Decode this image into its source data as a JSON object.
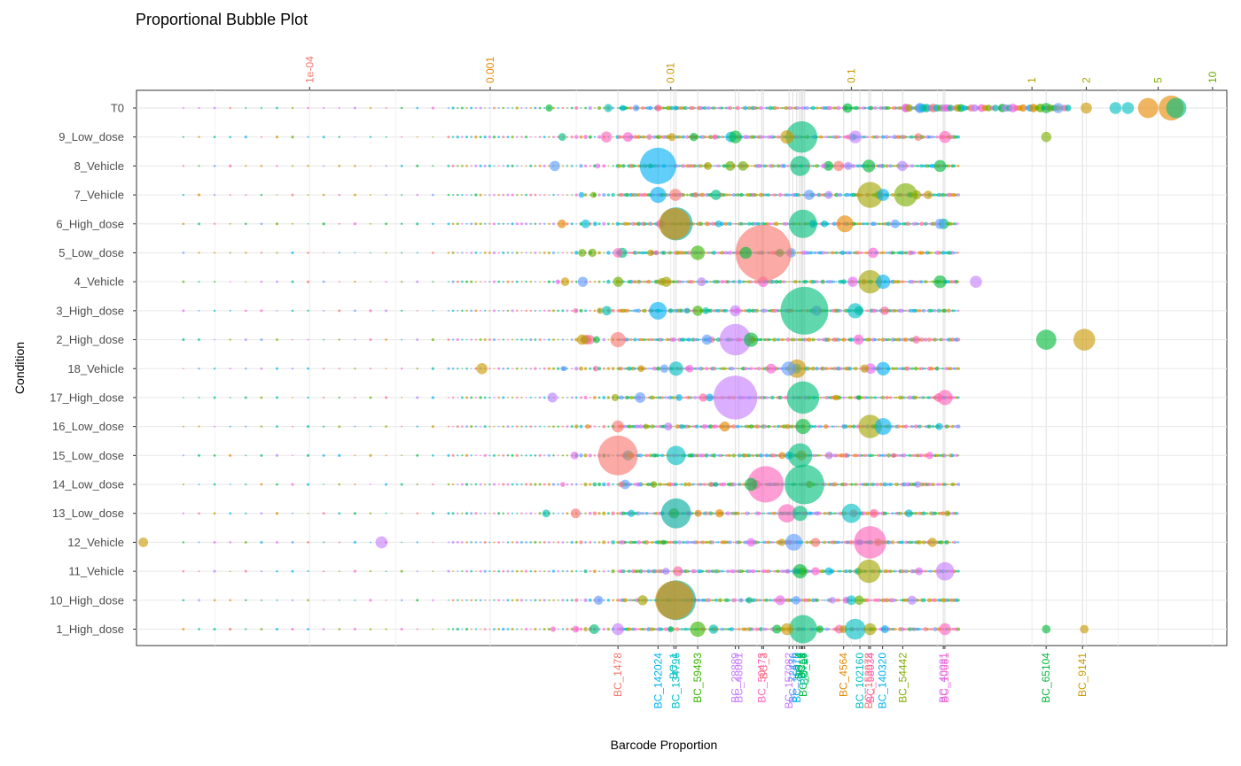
{
  "chart_data": {
    "type": "scatter",
    "subtype": "bubble",
    "title": "Proportional Bubble Plot",
    "xlabel": "Barcode Proportion",
    "ylabel": "Condition",
    "x_scale": "log10",
    "xlim": [
      1.1e-05,
      12
    ],
    "grid": true,
    "legend": "none",
    "conditions": [
      "T0",
      "9_Low_dose",
      "8_Vehicle",
      "7_Vehicle",
      "6_High_dose",
      "5_Low_dose",
      "4_Vehicle",
      "3_High_dose",
      "2_High_dose",
      "18_Vehicle",
      "17_High_dose",
      "16_Low_dose",
      "15_Low_dose",
      "14_Low_dose",
      "13_Low_dose",
      "12_Vehicle",
      "11_Vehicle",
      "10_High_dose",
      "1_High_dose"
    ],
    "top_axis_ticks": [
      {
        "value": 0.0001,
        "label": "1e-04",
        "color": "#F8766D"
      },
      {
        "value": 0.001,
        "label": "0.001",
        "color": "#E58700"
      },
      {
        "value": 0.01,
        "label": "0.01",
        "color": "#C99800"
      },
      {
        "value": 0.1,
        "label": "0.1",
        "color": "#C99800"
      },
      {
        "value": 1,
        "label": "1",
        "color": "#B8A000"
      },
      {
        "value": 2,
        "label": "2",
        "color": "#A3A500"
      },
      {
        "value": 5,
        "label": "5",
        "color": "#7CAE00"
      },
      {
        "value": 10,
        "label": "10",
        "color": "#6BB100"
      }
    ],
    "bottom_axis_ticks": [
      {
        "value": 0.0051,
        "label": "BC_1478",
        "color": "#F8766D"
      },
      {
        "value": 0.0085,
        "label": "BC_142024",
        "color": "#00B0F6"
      },
      {
        "value": 0.0104,
        "label": "BC_1",
        "color": "#00BFC4"
      },
      {
        "value": 0.0107,
        "label": "BC_134796",
        "color": "#00BFC4"
      },
      {
        "value": 0.0141,
        "label": "BC_59493",
        "color": "#39B600"
      },
      {
        "value": 0.0228,
        "label": "BC_28889",
        "color": "#C77CFF"
      },
      {
        "value": 0.0238,
        "label": "BC_48001",
        "color": "#C77CFF"
      },
      {
        "value": 0.0319,
        "label": "BC_50473",
        "color": "#FF62BC"
      },
      {
        "value": 0.0326,
        "label": "BC_3",
        "color": "#F8766D"
      },
      {
        "value": 0.0452,
        "label": "BC_157082",
        "color": "#C77CFF"
      },
      {
        "value": 0.0474,
        "label": "BC_72476",
        "color": "#619CFF"
      },
      {
        "value": 0.0498,
        "label": "BC_25970",
        "color": "#00B0F6"
      },
      {
        "value": 0.0515,
        "label": "BC_4",
        "color": "#00BA38"
      },
      {
        "value": 0.0528,
        "label": "BC_9",
        "color": "#00BF7D"
      },
      {
        "value": 0.0531,
        "label": "BC_8",
        "color": "#00C08B"
      },
      {
        "value": 0.0539,
        "label": "BC_3758",
        "color": "#00BA38"
      },
      {
        "value": 0.0551,
        "label": "BC_97",
        "color": "#00BF7D"
      },
      {
        "value": 0.0906,
        "label": "BC_4564",
        "color": "#E58700"
      },
      {
        "value": 0.1115,
        "label": "BC_102160",
        "color": "#00BFC4"
      },
      {
        "value": 0.1248,
        "label": "BC_153978",
        "color": "#F8766D"
      },
      {
        "value": 0.1275,
        "label": "BC_58034",
        "color": "#FF62BC"
      },
      {
        "value": 0.1489,
        "label": "BC_140320",
        "color": "#00B0F6"
      },
      {
        "value": 0.1926,
        "label": "BC_54442",
        "color": "#7CAE00"
      },
      {
        "value": 0.3228,
        "label": "BC_40081",
        "color": "#C77CFF"
      },
      {
        "value": 0.3296,
        "label": "BC_10681",
        "color": "#FF62BC"
      },
      {
        "value": 1.1986,
        "label": "BC_65104",
        "color": "#00BA38"
      },
      {
        "value": 1.9066,
        "label": "BC_9141",
        "color": "#C99800"
      }
    ],
    "bubbles": [
      {
        "condition": "T0",
        "x": 4.4,
        "size": 1.6,
        "color": "#E58700"
      },
      {
        "condition": "T0",
        "x": 5.9,
        "size": 2.2,
        "color": "#E58700"
      },
      {
        "condition": "T0",
        "x": 6.3,
        "size": 1.6,
        "color": "#00BF7D"
      },
      {
        "condition": "T0",
        "x": 2.9,
        "size": 0.6,
        "color": "#00BFC4"
      },
      {
        "condition": "T0",
        "x": 3.4,
        "size": 0.6,
        "color": "#00BFC4"
      },
      {
        "condition": "T0",
        "x": 2.0,
        "size": 0.5,
        "color": "#C99800"
      },
      {
        "condition": "T0",
        "x": 1.4,
        "size": 0.4,
        "color": "#619CFF"
      },
      {
        "condition": "T0",
        "x": 1.2,
        "size": 0.4,
        "color": "#00BA38"
      },
      {
        "condition": "9_Low_dose",
        "x": 0.053,
        "size": 3.0,
        "color": "#00BF7D"
      },
      {
        "condition": "9_Low_dose",
        "x": 0.0044,
        "size": 0.5,
        "color": "#FF62BC"
      },
      {
        "condition": "9_Low_dose",
        "x": 0.0228,
        "size": 0.7,
        "color": "#00BA38"
      },
      {
        "condition": "9_Low_dose",
        "x": 0.044,
        "size": 0.8,
        "color": "#C99800"
      },
      {
        "condition": "9_Low_dose",
        "x": 0.105,
        "size": 0.7,
        "color": "#C77CFF"
      },
      {
        "condition": "9_Low_dose",
        "x": 0.33,
        "size": 0.6,
        "color": "#FF62BC"
      },
      {
        "condition": "9_Low_dose",
        "x": 1.2,
        "size": 0.4,
        "color": "#7CAE00"
      },
      {
        "condition": "8_Vehicle",
        "x": 0.0085,
        "size": 3.6,
        "color": "#00B0F6"
      },
      {
        "condition": "8_Vehicle",
        "x": 0.052,
        "size": 1.6,
        "color": "#00BF7D"
      },
      {
        "condition": "8_Vehicle",
        "x": 0.125,
        "size": 0.7,
        "color": "#00BA38"
      },
      {
        "condition": "8_Vehicle",
        "x": 0.31,
        "size": 0.6,
        "color": "#00BA38"
      },
      {
        "condition": "8_Vehicle",
        "x": 0.085,
        "size": 0.4,
        "color": "#F8766D"
      },
      {
        "condition": "7_Vehicle",
        "x": 0.127,
        "size": 2.3,
        "color": "#A3A500"
      },
      {
        "condition": "7_Vehicle",
        "x": 0.2,
        "size": 2.0,
        "color": "#7CAE00"
      },
      {
        "condition": "7_Vehicle",
        "x": 0.0085,
        "size": 1.1,
        "color": "#00B0F6"
      },
      {
        "condition": "7_Vehicle",
        "x": 0.0106,
        "size": 0.6,
        "color": "#F8766D"
      },
      {
        "condition": "7_Vehicle",
        "x": 0.15,
        "size": 0.6,
        "color": "#00B0F6"
      },
      {
        "condition": "6_High_dose",
        "x": 0.0107,
        "size": 3.2,
        "color": "#00A99D"
      },
      {
        "condition": "6_High_dose",
        "x": 0.0105,
        "size": 3.0,
        "color": "#E58700"
      },
      {
        "condition": "6_High_dose",
        "x": 0.054,
        "size": 2.6,
        "color": "#00BF7D"
      },
      {
        "condition": "6_High_dose",
        "x": 0.092,
        "size": 1.2,
        "color": "#E58700"
      },
      {
        "condition": "5_Low_dose",
        "x": 0.0326,
        "size": 6.0,
        "color": "#F8766D"
      },
      {
        "condition": "5_Low_dose",
        "x": 0.0141,
        "size": 0.9,
        "color": "#39B600"
      },
      {
        "condition": "5_Low_dose",
        "x": 0.0051,
        "size": 0.3,
        "color": "#FF62BC"
      },
      {
        "condition": "5_Low_dose",
        "x": 0.026,
        "size": 0.6,
        "color": "#00BA38"
      },
      {
        "condition": "4_Vehicle",
        "x": 0.127,
        "size": 2.0,
        "color": "#A3A500"
      },
      {
        "condition": "4_Vehicle",
        "x": 0.15,
        "size": 0.9,
        "color": "#00B0F6"
      },
      {
        "condition": "4_Vehicle",
        "x": 0.31,
        "size": 0.7,
        "color": "#00BA38"
      },
      {
        "condition": "4_Vehicle",
        "x": 0.49,
        "size": 0.6,
        "color": "#C77CFF"
      },
      {
        "condition": "4_Vehicle",
        "x": 0.0026,
        "size": 0.2,
        "color": "#C99800"
      },
      {
        "condition": "3_High_dose",
        "x": 0.055,
        "size": 5.0,
        "color": "#00BF7D"
      },
      {
        "condition": "3_High_dose",
        "x": 0.0085,
        "size": 1.3,
        "color": "#00B0F6"
      },
      {
        "condition": "3_High_dose",
        "x": 0.0141,
        "size": 0.4,
        "color": "#39B600"
      },
      {
        "condition": "3_High_dose",
        "x": 0.0228,
        "size": 0.5,
        "color": "#C77CFF"
      },
      {
        "condition": "3_High_dose",
        "x": 0.105,
        "size": 1.0,
        "color": "#00BFC4"
      },
      {
        "condition": "2_High_dose",
        "x": 0.0228,
        "size": 3.0,
        "color": "#C77CFF"
      },
      {
        "condition": "2_High_dose",
        "x": 1.2,
        "size": 1.6,
        "color": "#00BA38"
      },
      {
        "condition": "2_High_dose",
        "x": 1.95,
        "size": 1.8,
        "color": "#C99800"
      },
      {
        "condition": "2_High_dose",
        "x": 0.0051,
        "size": 1.0,
        "color": "#F8766D"
      },
      {
        "condition": "2_High_dose",
        "x": 0.0278,
        "size": 0.9,
        "color": "#00BA38"
      },
      {
        "condition": "18_Vehicle",
        "x": 0.05,
        "size": 1.4,
        "color": "#C99800"
      },
      {
        "condition": "18_Vehicle",
        "x": 0.045,
        "size": 0.9,
        "color": "#619CFF"
      },
      {
        "condition": "18_Vehicle",
        "x": 0.0107,
        "size": 0.9,
        "color": "#00BFC4"
      },
      {
        "condition": "18_Vehicle",
        "x": 0.0009,
        "size": 0.5,
        "color": "#C99800"
      },
      {
        "condition": "18_Vehicle",
        "x": 0.15,
        "size": 0.8,
        "color": "#00B0F6"
      },
      {
        "condition": "17_High_dose",
        "x": 0.0228,
        "size": 4.5,
        "color": "#C77CFF"
      },
      {
        "condition": "17_High_dose",
        "x": 0.054,
        "size": 3.1,
        "color": "#00BF7D"
      },
      {
        "condition": "17_High_dose",
        "x": 0.33,
        "size": 1.0,
        "color": "#FF62BC"
      },
      {
        "condition": "16_Low_dose",
        "x": 0.127,
        "size": 2.0,
        "color": "#A3A500"
      },
      {
        "condition": "16_Low_dose",
        "x": 0.15,
        "size": 1.2,
        "color": "#00B0F6"
      },
      {
        "condition": "16_Low_dose",
        "x": 0.0051,
        "size": 0.6,
        "color": "#F8766D"
      },
      {
        "condition": "16_Low_dose",
        "x": 0.054,
        "size": 1.0,
        "color": "#00BA38"
      },
      {
        "condition": "15_Low_dose",
        "x": 0.0051,
        "size": 4.0,
        "color": "#F8766D"
      },
      {
        "condition": "15_Low_dose",
        "x": 0.0107,
        "size": 1.5,
        "color": "#00BFC4"
      },
      {
        "condition": "15_Low_dose",
        "x": 0.052,
        "size": 2.1,
        "color": "#00BF7D"
      },
      {
        "condition": "14_Low_dose",
        "x": 0.0335,
        "size": 3.6,
        "color": "#FF62BC"
      },
      {
        "condition": "14_Low_dose",
        "x": 0.055,
        "size": 4.0,
        "color": "#00BF7D"
      },
      {
        "condition": "14_Low_dose",
        "x": 0.0278,
        "size": 0.7,
        "color": "#00BA38"
      },
      {
        "condition": "13_Low_dose",
        "x": 0.0107,
        "size": 2.8,
        "color": "#00A99D"
      },
      {
        "condition": "13_Low_dose",
        "x": 0.044,
        "size": 1.4,
        "color": "#FF62BC"
      },
      {
        "condition": "13_Low_dose",
        "x": 0.1,
        "size": 1.5,
        "color": "#00BFC4"
      },
      {
        "condition": "13_Low_dose",
        "x": 0.052,
        "size": 1.0,
        "color": "#00BF7D"
      },
      {
        "condition": "12_Vehicle",
        "x": 0.127,
        "size": 3.1,
        "color": "#FF62BC"
      },
      {
        "condition": "12_Vehicle",
        "x": 0.048,
        "size": 1.2,
        "color": "#619CFF"
      },
      {
        "condition": "12_Vehicle",
        "x": 0.00025,
        "size": 0.6,
        "color": "#C77CFF"
      },
      {
        "condition": "12_Vehicle",
        "x": 1.2e-05,
        "size": 0.3,
        "color": "#C99800"
      },
      {
        "condition": "11_Vehicle",
        "x": 0.125,
        "size": 2.0,
        "color": "#A3A500"
      },
      {
        "condition": "11_Vehicle",
        "x": 0.33,
        "size": 1.4,
        "color": "#C77CFF"
      },
      {
        "condition": "11_Vehicle",
        "x": 0.052,
        "size": 0.9,
        "color": "#00BA38"
      },
      {
        "condition": "10_High_dose",
        "x": 0.0107,
        "size": 4.0,
        "color": "#00A99D"
      },
      {
        "condition": "10_High_dose",
        "x": 0.0105,
        "size": 3.9,
        "color": "#E58700"
      },
      {
        "condition": "10_High_dose",
        "x": 0.1,
        "size": 0.3,
        "color": "#00BFC4"
      },
      {
        "condition": "1_High_dose",
        "x": 0.054,
        "size": 2.6,
        "color": "#00BF7D"
      },
      {
        "condition": "1_High_dose",
        "x": 0.105,
        "size": 1.7,
        "color": "#00BFC4"
      },
      {
        "condition": "1_High_dose",
        "x": 0.0141,
        "size": 1.0,
        "color": "#39B600"
      },
      {
        "condition": "1_High_dose",
        "x": 0.0051,
        "size": 0.6,
        "color": "#C77CFF"
      },
      {
        "condition": "1_High_dose",
        "x": 0.044,
        "size": 0.6,
        "color": "#C99800"
      },
      {
        "condition": "1_High_dose",
        "x": 0.33,
        "size": 0.6,
        "color": "#FF62BC"
      },
      {
        "condition": "1_High_dose",
        "x": 0.127,
        "size": 0.6,
        "color": "#A3A500"
      },
      {
        "condition": "1_High_dose",
        "x": 1.95,
        "size": 0.2,
        "color": "#C99800"
      },
      {
        "condition": "1_High_dose",
        "x": 1.2,
        "size": 0.2,
        "color": "#00BA38"
      }
    ],
    "palette": [
      "#F8766D",
      "#E58700",
      "#C99800",
      "#A3A500",
      "#6BB100",
      "#00BA38",
      "#00BF7D",
      "#00C0AF",
      "#00BCD8",
      "#00B0F6",
      "#619CFF",
      "#B983FF",
      "#E76BF3",
      "#FD61D1",
      "#FF67A4"
    ]
  }
}
